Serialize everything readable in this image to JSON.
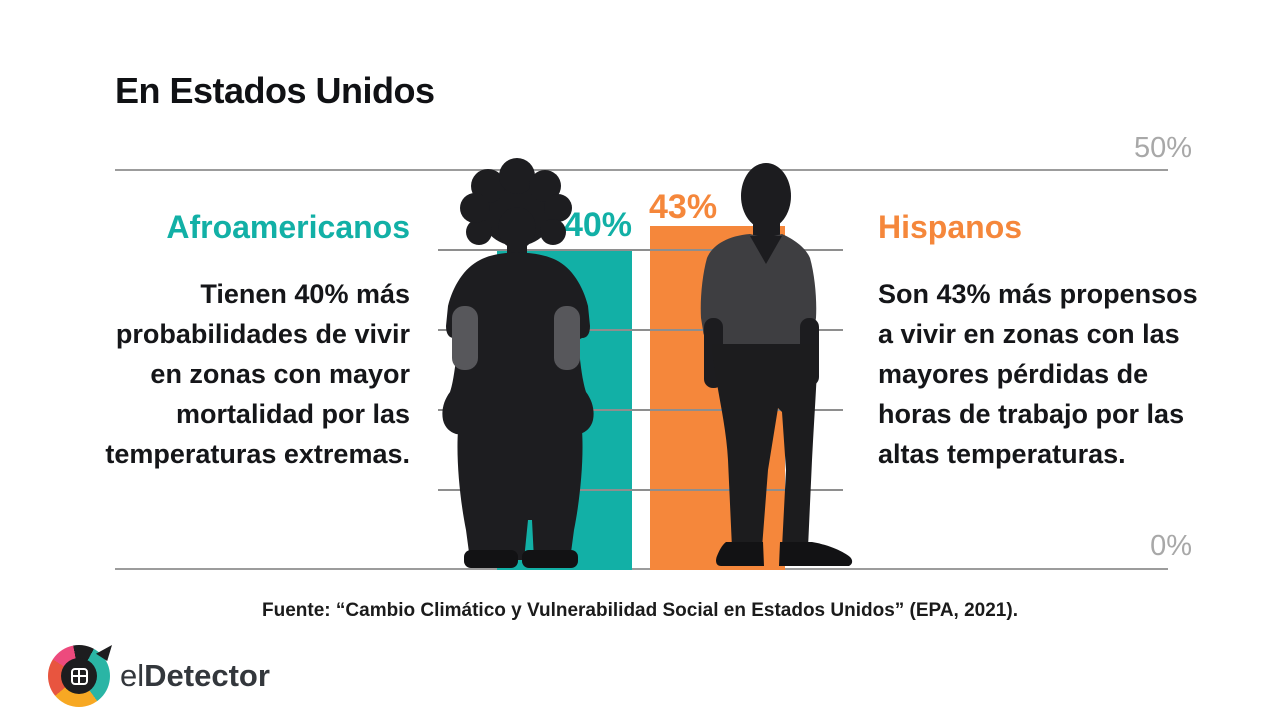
{
  "title": "En Estados Unidos",
  "axis": {
    "top_label": "50%",
    "bottom_label": "0%"
  },
  "groups": {
    "left": {
      "heading": "Afroamericanos",
      "body": "Tienen 40% más probabilidades de vivir en zonas con mayor mortalidad por las temperaturas extremas.",
      "value_label": "40%",
      "color": "#12b0a6"
    },
    "right": {
      "heading": "Hispanos",
      "body": "Son 43% más propensos a vivir en zonas con las mayores pérdidas de horas de trabajo por las altas temperaturas.",
      "value_label": "43%",
      "color": "#f5873b"
    }
  },
  "source": "Fuente: “Cambio Climático y Vulnerabilidad Social en Estados Unidos” (EPA, 2021).",
  "logo": {
    "prefix": "el",
    "name": "Detector"
  },
  "colors": {
    "teal": "#12b0a6",
    "orange": "#f5873b",
    "text": "#101114",
    "axis_label_gray": "#a8a8a8",
    "gridline_gray": "#8e8e8e",
    "silhouette_black": "#1d1d20",
    "shirt_gray": "#3e3e41"
  },
  "chart_data": {
    "type": "bar",
    "title": "En Estados Unidos",
    "categories": [
      "Afroamericanos",
      "Hispanos"
    ],
    "values": [
      40,
      43
    ],
    "value_labels": [
      "40%",
      "43%"
    ],
    "series_colors": [
      "#12b0a6",
      "#f5873b"
    ],
    "xlabel": "",
    "ylabel": "",
    "ylim": [
      0,
      50
    ],
    "yticks_labeled": [
      0,
      50
    ],
    "gridlines": [
      0,
      10,
      20,
      30,
      40,
      50
    ],
    "legend": "none",
    "annotations": [
      "Tienen 40% más probabilidades de vivir en zonas con mayor mortalidad por las temperaturas extremas.",
      "Son 43% más propensos a vivir en zonas con las mayores pérdidas de horas de trabajo por las altas temperaturas."
    ],
    "source": "Fuente: “Cambio Climático y Vulnerabilidad Social en Estados Unidos” (EPA, 2021)."
  }
}
